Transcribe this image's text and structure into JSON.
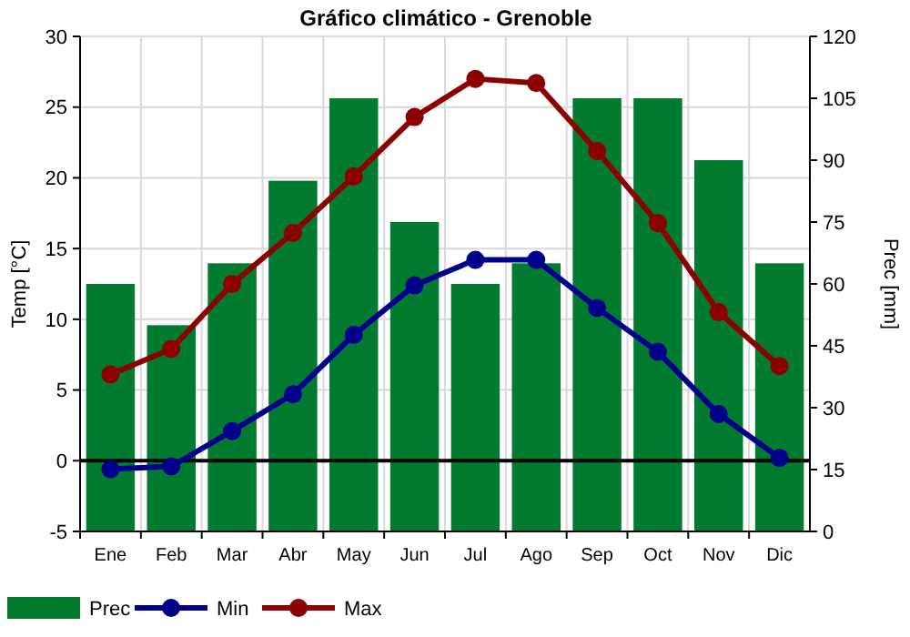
{
  "chart_data": {
    "type": "bar",
    "title": "Gráfico climático - Grenoble",
    "ylabel": "Temp [°C]",
    "y2label": "Prec [mm]",
    "categories": [
      "Ene",
      "Feb",
      "Mar",
      "Abr",
      "May",
      "Jun",
      "Jul",
      "Ago",
      "Sep",
      "Oct",
      "Nov",
      "Dic"
    ],
    "series": [
      {
        "name": "Prec",
        "type": "bar",
        "axis": "y2",
        "color": "#027b30",
        "values": [
          60,
          50,
          65,
          85,
          105,
          75,
          60,
          65,
          105,
          105,
          90,
          65
        ]
      },
      {
        "name": "Min",
        "type": "line",
        "color": "#00008b",
        "marker": "circle",
        "values": [
          -0.6,
          -0.4,
          2.1,
          4.7,
          8.9,
          12.4,
          14.2,
          14.2,
          10.8,
          7.7,
          3.3,
          0.2
        ]
      },
      {
        "name": "Max",
        "type": "line",
        "color": "#8b0000",
        "marker": "circle",
        "values": [
          6.1,
          7.9,
          12.5,
          16.1,
          20.1,
          24.3,
          27.0,
          26.7,
          21.9,
          16.8,
          10.5,
          6.7
        ]
      }
    ],
    "ylim": [
      -5,
      30
    ],
    "yticks": [
      -5,
      0,
      5,
      10,
      15,
      20,
      25,
      30
    ],
    "y2lim": [
      0,
      120
    ],
    "y2ticks": [
      0,
      15,
      30,
      45,
      60,
      75,
      90,
      105,
      120
    ],
    "ref_lines": [
      {
        "axis": "y",
        "value": 0,
        "color": "#000000"
      }
    ],
    "grid": true,
    "legend": "bottom left"
  }
}
